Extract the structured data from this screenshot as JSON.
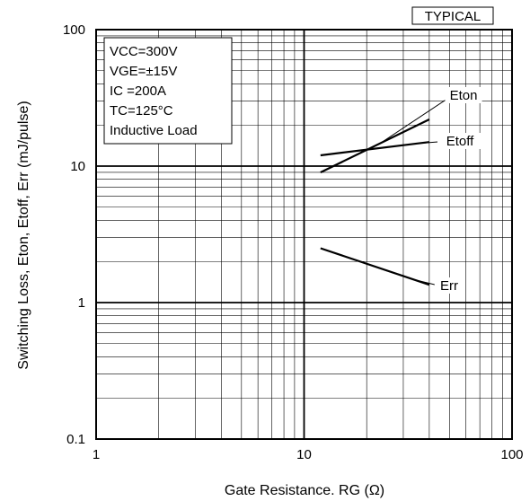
{
  "chart_data": {
    "type": "line",
    "title": "",
    "badge": "TYPICAL",
    "xlabel": "Gate Resistance. RG (Ω)",
    "ylabel": "Switching Loss, Eton, Etoff, Err (mJ/pulse)",
    "xscale": "log",
    "yscale": "log",
    "xlim": [
      1,
      100
    ],
    "ylim": [
      0.1,
      100
    ],
    "xticks": [
      1,
      10,
      100
    ],
    "xtick_labels": [
      "1",
      "10",
      "100"
    ],
    "yticks": [
      0.1,
      1,
      10,
      100
    ],
    "ytick_labels": [
      "0.1",
      "1",
      "10",
      "100"
    ],
    "grid": true,
    "conditions": [
      "VCC=300V",
      "VGE=±15V",
      "IC =200A",
      "TC=125°C",
      "Inductive Load"
    ],
    "series": [
      {
        "name": "Eton",
        "x": [
          12,
          40
        ],
        "y": [
          9.0,
          22.0
        ]
      },
      {
        "name": "Etoff",
        "x": [
          12,
          40
        ],
        "y": [
          12.0,
          15.0
        ]
      },
      {
        "name": "Err",
        "x": [
          12,
          40
        ],
        "y": [
          2.5,
          1.35
        ]
      }
    ]
  }
}
